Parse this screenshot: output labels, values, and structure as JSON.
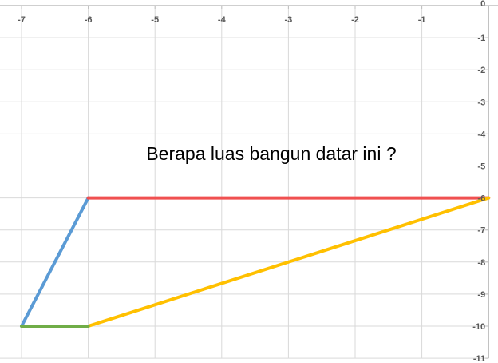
{
  "chart_data": {
    "type": "line",
    "title": "",
    "xlabel": "",
    "ylabel": "",
    "xlim": [
      -7.3,
      0.3
    ],
    "ylim": [
      -11,
      0
    ],
    "x_ticks": [
      -7,
      -6,
      -5,
      -4,
      -3,
      -2,
      -1,
      0
    ],
    "y_ticks": [
      0,
      -1,
      -2,
      -3,
      -4,
      -5,
      -6,
      -7,
      -8,
      -9,
      -10,
      -11
    ],
    "x_tick_labels": [
      "-7",
      "-6",
      "-5",
      "-4",
      "-3",
      "-2",
      "-1",
      "0"
    ],
    "y_tick_labels": [
      "0",
      "-1",
      "-2",
      "-3",
      "-4",
      "-5",
      "-6",
      "-7",
      "-8",
      "-9",
      "-10",
      "-11"
    ],
    "x_axis_position": "top",
    "y_axis_position": "right",
    "grid": true,
    "legend": "none",
    "annotation": "Berapa luas bangun datar ini ?",
    "series": [
      {
        "color": "#5B9BD5",
        "points": [
          [
            -7,
            -10
          ],
          [
            -6,
            -6
          ]
        ]
      },
      {
        "color": "#F05050",
        "points": [
          [
            -6,
            -6
          ],
          [
            0,
            -6
          ]
        ]
      },
      {
        "color": "#FFC000",
        "points": [
          [
            -6,
            -10
          ],
          [
            0,
            -6
          ]
        ]
      },
      {
        "color": "#70AD47",
        "points": [
          [
            -7,
            -10
          ],
          [
            -6,
            -10
          ]
        ]
      }
    ],
    "gridline_color": "#d9d9d9",
    "axis_color": "#bfbfbf"
  }
}
